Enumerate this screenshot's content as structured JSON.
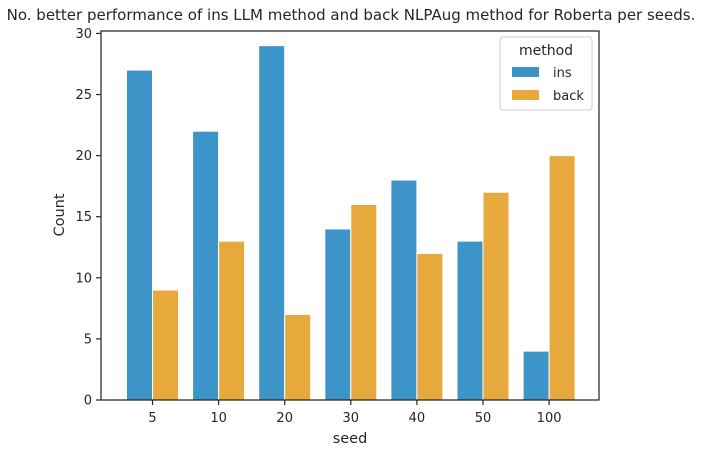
{
  "chart_data": {
    "type": "bar",
    "title": "No. better performance of ins LLM method and back NLPAug method for Roberta per seeds.",
    "xlabel": "seed",
    "ylabel": "Count",
    "categories": [
      "5",
      "10",
      "20",
      "30",
      "40",
      "50",
      "100"
    ],
    "series": [
      {
        "name": "ins",
        "color": "#3d94c8",
        "values": [
          27,
          22,
          29,
          14,
          18,
          13,
          4
        ]
      },
      {
        "name": "back",
        "color": "#e7a93b",
        "values": [
          9,
          13,
          7,
          16,
          12,
          17,
          20
        ]
      }
    ],
    "ylim": [
      0,
      30.2
    ],
    "yticks": [
      0,
      5,
      10,
      15,
      20,
      25,
      30
    ],
    "grid": false,
    "legend": {
      "title": "method",
      "placement": "top-right"
    }
  }
}
